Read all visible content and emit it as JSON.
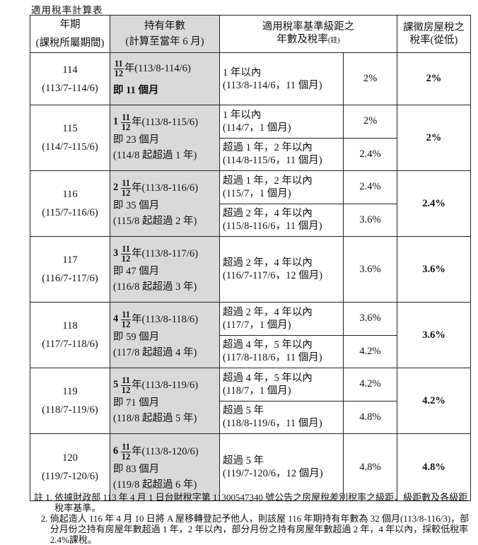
{
  "title": "適用稅率計算表",
  "headers": {
    "col1": [
      "年期",
      "(課稅所屬期間)"
    ],
    "col2": [
      "持有年數",
      "(計算至當年 6 月)"
    ],
    "col3": [
      "適用稅率基準級距之",
      "年數及稅率",
      "(註)"
    ],
    "col5": [
      "課徵房屋稅之",
      "稅率(從低)"
    ]
  },
  "rows": [
    {
      "year": "114",
      "period": "(113/7-114/6)",
      "holding": {
        "whole": "",
        "num": "11",
        "den": "12",
        "range": "年(113/8-114/6)",
        "months": "即 11 個月",
        "since": ""
      },
      "brackets": [
        {
          "label": "1 年以內",
          "range": "(113/8-114/6，11 個月)",
          "rate": "2%"
        }
      ],
      "final_rate": "2%"
    },
    {
      "year": "115",
      "period": "(114/7-115/6)",
      "holding": {
        "whole": "1",
        "num": "11",
        "den": "12",
        "range": "年(113/8-115/6)",
        "months": "即 23 個月",
        "since": "(114/8 起超過 1 年)"
      },
      "brackets": [
        {
          "label": "1 年以內",
          "range": "(114/7，1 個月)",
          "rate": "2%"
        },
        {
          "label": "超過 1 年，2 年以內",
          "range": "(114/8-115/6，11 個月)",
          "rate": "2.4%"
        }
      ],
      "final_rate": "2%"
    },
    {
      "year": "116",
      "period": "(115/7-116/6)",
      "holding": {
        "whole": "2",
        "num": "11",
        "den": "12",
        "range": "年(113/8-116/6)",
        "months": "即 35 個月",
        "since": "(115/8 起超過 2 年)"
      },
      "brackets": [
        {
          "label": "超過 1 年，2 年以內",
          "range": "(115/7，1 個月)",
          "rate": "2.4%"
        },
        {
          "label": "超過 2 年，4 年以內",
          "range": "(115/8-116/6，11 個月)",
          "rate": "3.6%"
        }
      ],
      "final_rate": "2.4%"
    },
    {
      "year": "117",
      "period": "(116/7-117/6)",
      "holding": {
        "whole": "3",
        "num": "11",
        "den": "12",
        "range": "年(113/8-117/6)",
        "months": "即 47 個月",
        "since": "(116/8 起超過 3 年)"
      },
      "brackets": [
        {
          "label": "超過 2 年，4 年以內",
          "range": "(116/7-117/6，12 個月)",
          "rate": "3.6%"
        }
      ],
      "final_rate": "3.6%"
    },
    {
      "year": "118",
      "period": "(117/7-118/6)",
      "holding": {
        "whole": "4",
        "num": "11",
        "den": "12",
        "range": "年(113/8-118/6)",
        "months": "即 59 個月",
        "since": "(117/8 起超過 4 年)"
      },
      "brackets": [
        {
          "label": "超過 2 年，4 年以內",
          "range": "(117/7，1 個月)",
          "rate": "3.6%"
        },
        {
          "label": "超過 4 年，5 年以內",
          "range": "(117/8-118/6，11 個月)",
          "rate": "4.2%"
        }
      ],
      "final_rate": "3.6%"
    },
    {
      "year": "119",
      "period": "(118/7-119/6)",
      "holding": {
        "whole": "5",
        "num": "11",
        "den": "12",
        "range": "年(113/8-119/6)",
        "months": "即 71 個月",
        "since": "(118/8 起超過 5 年)"
      },
      "brackets": [
        {
          "label": "超過 4 年，5 年以內",
          "range": "(118/7，1 個月)",
          "rate": "4.2%"
        },
        {
          "label": "超過 5 年",
          "range": "(118/8-119/6，11 個月)",
          "rate": "4.8%"
        }
      ],
      "final_rate": "4.2%"
    },
    {
      "year": "120",
      "period": "(119/7-120/6)",
      "holding": {
        "whole": "6",
        "num": "11",
        "den": "12",
        "range": "年(113/8-120/6)",
        "months": "即 83 個月",
        "since": "(119/8 起超過 6 年)"
      },
      "brackets": [
        {
          "label": "超過 5 年",
          "range": "(119/7-120/6，12 個月)",
          "rate": "4.8%"
        }
      ],
      "final_rate": "4.8%"
    }
  ],
  "notes": [
    {
      "lead": "註 1. ",
      "text": "依據財政部 113 年 4 月 1 日台財稅字第 11300547340 號公告之房屋稅差別稅率之級距、級距數及各級距稅率基準。"
    },
    {
      "lead": "   2. ",
      "text": "倘起造人 116 年 4 月 10 日將 A 屋移轉登記予他人，則該屋 116 年期持有年數為 32 個月(113/8-116/3)，部分月份之持有房屋年數超過 1 年，2 年以內，部分月份之持有房屋年數超過 2 年，4 年以內，採較低稅率 2.4%課稅。"
    }
  ]
}
